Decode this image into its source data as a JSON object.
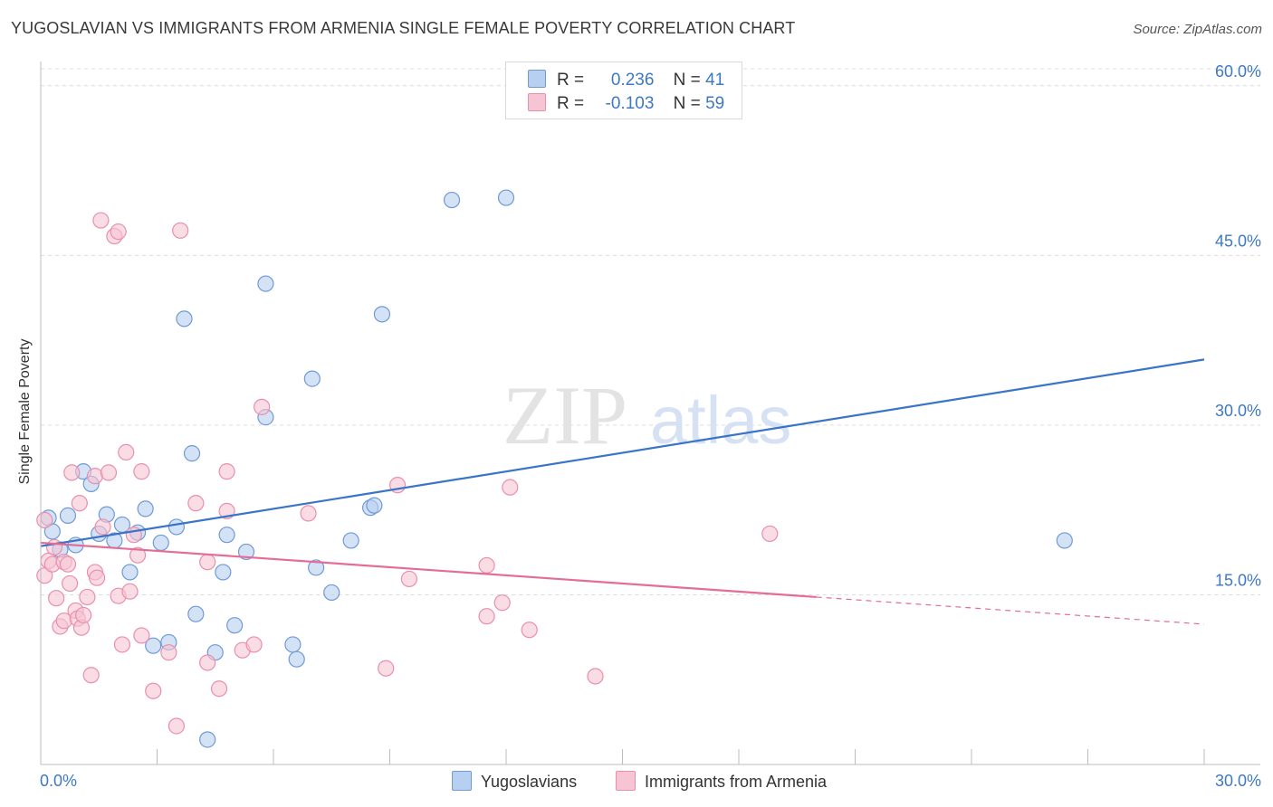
{
  "title": "YUGOSLAVIAN VS IMMIGRANTS FROM ARMENIA SINGLE FEMALE POVERTY CORRELATION CHART",
  "source": "Source: ZipAtlas.com",
  "watermark": {
    "zip": "ZIP",
    "atlas": "atlas"
  },
  "colors": {
    "blue_fill": "#b7cff0",
    "blue_stroke": "#6f9ad6",
    "blue_line": "#3a74c9",
    "pink_fill": "#f7c4d3",
    "pink_stroke": "#ea8fab",
    "pink_line": "#e36d96",
    "grid": "#dcdcdc",
    "axis_label": "#3e78c4"
  },
  "legend": {
    "series1": {
      "r_label": "R =",
      "r_value": "0.236",
      "n_label": "N =",
      "n_value": "41"
    },
    "series2": {
      "r_label": "R =",
      "r_value": "-0.103",
      "n_label": "N =",
      "n_value": "59"
    }
  },
  "chart_data": {
    "type": "scatter",
    "title": "YUGOSLAVIAN VS IMMIGRANTS FROM ARMENIA SINGLE FEMALE POVERTY CORRELATION CHART",
    "xlabel": "",
    "ylabel": "Single Female Poverty",
    "xlim": [
      0,
      30
    ],
    "ylim": [
      0,
      61.5
    ],
    "x_tick_labels": [
      "0.0%",
      "30.0%"
    ],
    "y_ticks": [
      15,
      30,
      45,
      60
    ],
    "y_tick_labels": [
      "15.0%",
      "30.0%",
      "45.0%",
      "60.0%"
    ],
    "grid": true,
    "series": [
      {
        "name": "Yugoslavians",
        "color": "#b7cff0",
        "r": 0.236,
        "n": 41,
        "trend": {
          "x0": 0,
          "y0": 19.3,
          "x1": 30,
          "y1": 35.8,
          "dashed_from": null
        },
        "points": [
          [
            0.2,
            21.8
          ],
          [
            0.3,
            20.6
          ],
          [
            0.5,
            19.0
          ],
          [
            0.7,
            22.0
          ],
          [
            0.9,
            19.4
          ],
          [
            1.1,
            25.9
          ],
          [
            1.3,
            24.8
          ],
          [
            1.5,
            20.4
          ],
          [
            1.7,
            22.1
          ],
          [
            1.9,
            19.8
          ],
          [
            2.1,
            21.2
          ],
          [
            2.3,
            17.0
          ],
          [
            2.5,
            20.5
          ],
          [
            2.7,
            22.6
          ],
          [
            2.9,
            10.5
          ],
          [
            3.1,
            19.6
          ],
          [
            3.3,
            10.8
          ],
          [
            3.5,
            21.0
          ],
          [
            3.7,
            39.4
          ],
          [
            3.9,
            27.5
          ],
          [
            4.0,
            13.3
          ],
          [
            4.3,
            2.2
          ],
          [
            4.5,
            9.9
          ],
          [
            4.7,
            17.0
          ],
          [
            4.8,
            20.3
          ],
          [
            5.0,
            12.3
          ],
          [
            5.3,
            18.8
          ],
          [
            5.8,
            42.5
          ],
          [
            5.8,
            30.7
          ],
          [
            6.5,
            10.6
          ],
          [
            6.6,
            9.3
          ],
          [
            7.0,
            34.1
          ],
          [
            7.1,
            17.4
          ],
          [
            7.5,
            15.2
          ],
          [
            8.0,
            19.8
          ],
          [
            8.5,
            22.7
          ],
          [
            8.6,
            22.9
          ],
          [
            8.8,
            39.8
          ],
          [
            10.6,
            49.9
          ],
          [
            12.0,
            50.1
          ],
          [
            26.4,
            19.8
          ]
        ]
      },
      {
        "name": "Immigrants from Armenia",
        "color": "#f7c4d3",
        "r": -0.103,
        "n": 59,
        "trend": {
          "x0": 0,
          "y0": 19.6,
          "x1": 30,
          "y1": 12.4,
          "dashed_from": 20.0
        },
        "points": [
          [
            0.1,
            21.6
          ],
          [
            0.1,
            16.7
          ],
          [
            0.2,
            18.0
          ],
          [
            0.3,
            17.7
          ],
          [
            0.4,
            14.7
          ],
          [
            0.5,
            12.2
          ],
          [
            0.6,
            12.7
          ],
          [
            0.6,
            17.9
          ],
          [
            0.7,
            17.7
          ],
          [
            0.75,
            16.0
          ],
          [
            0.8,
            25.8
          ],
          [
            0.9,
            13.6
          ],
          [
            0.95,
            12.9
          ],
          [
            1.0,
            23.1
          ],
          [
            1.05,
            12.1
          ],
          [
            1.1,
            13.2
          ],
          [
            1.2,
            14.8
          ],
          [
            1.3,
            7.9
          ],
          [
            1.4,
            25.5
          ],
          [
            1.4,
            17.0
          ],
          [
            1.45,
            16.5
          ],
          [
            1.55,
            48.1
          ],
          [
            1.75,
            25.8
          ],
          [
            1.9,
            46.7
          ],
          [
            2.0,
            47.1
          ],
          [
            2.0,
            14.9
          ],
          [
            2.1,
            10.6
          ],
          [
            2.2,
            27.6
          ],
          [
            2.3,
            15.3
          ],
          [
            2.4,
            20.3
          ],
          [
            2.6,
            11.4
          ],
          [
            2.6,
            25.9
          ],
          [
            2.9,
            6.5
          ],
          [
            3.3,
            9.9
          ],
          [
            3.5,
            3.4
          ],
          [
            3.6,
            47.2
          ],
          [
            4.0,
            23.1
          ],
          [
            4.3,
            17.9
          ],
          [
            4.3,
            9.0
          ],
          [
            4.6,
            6.7
          ],
          [
            4.8,
            22.4
          ],
          [
            4.8,
            25.9
          ],
          [
            5.2,
            10.1
          ],
          [
            5.5,
            10.6
          ],
          [
            5.7,
            31.6
          ],
          [
            6.9,
            22.2
          ],
          [
            8.9,
            8.5
          ],
          [
            9.2,
            24.7
          ],
          [
            9.5,
            16.4
          ],
          [
            11.5,
            17.6
          ],
          [
            11.5,
            13.1
          ],
          [
            11.9,
            14.3
          ],
          [
            12.1,
            24.5
          ],
          [
            12.6,
            11.9
          ],
          [
            14.3,
            7.8
          ],
          [
            18.8,
            20.4
          ],
          [
            2.5,
            18.5
          ],
          [
            0.35,
            19.2
          ],
          [
            1.6,
            21.0
          ]
        ]
      }
    ]
  },
  "bottom_legend": {
    "series1": "Yugoslavians",
    "series2": "Immigrants from Armenia"
  }
}
